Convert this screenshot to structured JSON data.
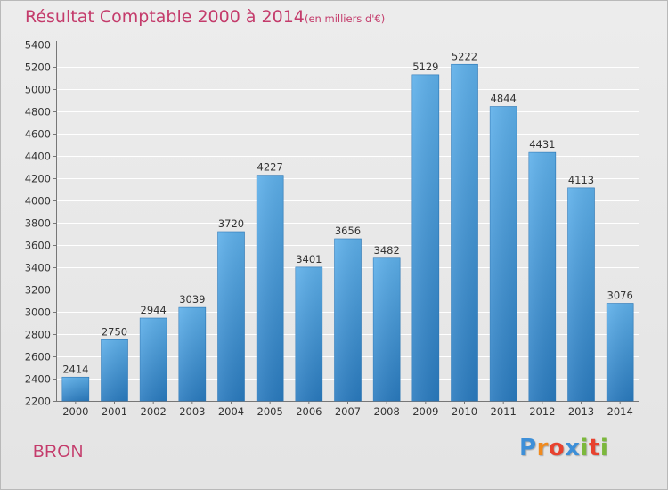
{
  "title": "Résultat Comptable 2000 à 2014",
  "subtitle": "(en milliers d'€)",
  "city": "BRON",
  "logo": {
    "letters": [
      "P",
      "r",
      "o",
      "x",
      "i",
      "t",
      "i"
    ],
    "colors": [
      "#3d8fd8",
      "#f18a1d",
      "#e8422f",
      "#3d8fd8",
      "#7cb83c",
      "#e8422f",
      "#7cb83c"
    ]
  },
  "colors": {
    "bar_top": "#5eb0ea",
    "bar_bottom": "#2a7bbf",
    "grid": "#ffffff",
    "axis_text": "#333333",
    "label_text": "#333333"
  },
  "chart_data": {
    "type": "bar",
    "categories": [
      "2000",
      "2001",
      "2002",
      "2003",
      "2004",
      "2005",
      "2006",
      "2007",
      "2008",
      "2009",
      "2010",
      "2011",
      "2012",
      "2013",
      "2014"
    ],
    "values": [
      2414,
      2750,
      2944,
      3039,
      3720,
      4227,
      3401,
      3656,
      3482,
      5129,
      5222,
      4844,
      4431,
      4113,
      3076
    ],
    "yticks": [
      2200,
      2400,
      2600,
      2800,
      3000,
      3200,
      3400,
      3600,
      3800,
      4000,
      4200,
      4400,
      4600,
      4800,
      5000,
      5200,
      5400
    ],
    "ylim": [
      2200,
      5400
    ],
    "title": "Résultat Comptable 2000 à 2014",
    "xlabel": "",
    "ylabel": "",
    "grid": true
  }
}
